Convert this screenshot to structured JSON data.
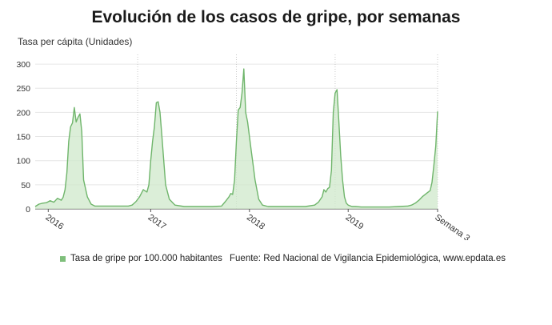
{
  "title": "Evolución de los casos de gripe, por semanas",
  "legend_label": "Tasa de gripe por 100.000 habitantes",
  "source": "Fuente: Red Nacional de Vigilancia Epidemiológica, www.epdata.es",
  "colors": {
    "line": "#6fb56b",
    "fill": "#cfe8cb",
    "grid": "#e6e6e6"
  },
  "chart_data": {
    "type": "area",
    "ylabel": "Tasa per cápita (Unidades)",
    "ylim": [
      0,
      320
    ],
    "yticks": [
      0,
      50,
      100,
      150,
      200,
      250,
      300
    ],
    "xlim": [
      0,
      216
    ],
    "x_tick_labels": [
      {
        "x": 7,
        "label": "2016"
      },
      {
        "x": 62,
        "label": "2017"
      },
      {
        "x": 115,
        "label": "2018"
      },
      {
        "x": 168,
        "label": "2019"
      },
      {
        "x": 216,
        "label": "Semana 3"
      }
    ],
    "vertical_grid_x": [
      55,
      108,
      161
    ],
    "grid": true,
    "series": [
      {
        "x": [
          0,
          2,
          4,
          6,
          8,
          10,
          12,
          14,
          15,
          16,
          17,
          18,
          19,
          20,
          21,
          22,
          23,
          24,
          25,
          26,
          28,
          30,
          32,
          36,
          40,
          45,
          50,
          52,
          54,
          56,
          58,
          60,
          61,
          62,
          63,
          64,
          65,
          66,
          67,
          68,
          70,
          72,
          75,
          80,
          85,
          90,
          95,
          100,
          102,
          104,
          105,
          106,
          107,
          108,
          109,
          110,
          111,
          112,
          113,
          114,
          115,
          116,
          117,
          118,
          120,
          122,
          125,
          130,
          135,
          140,
          145,
          150,
          152,
          154,
          155,
          156,
          157,
          158,
          159,
          160,
          161,
          162,
          163,
          164,
          165,
          166,
          167,
          168,
          170,
          172,
          175,
          180,
          185,
          190,
          195,
          200,
          202,
          204,
          206,
          208,
          210,
          212,
          213,
          214,
          215,
          216
        ],
        "y": [
          5,
          10,
          12,
          13,
          17,
          14,
          22,
          18,
          24,
          40,
          75,
          140,
          170,
          178,
          210,
          180,
          190,
          197,
          160,
          60,
          25,
          10,
          6,
          6,
          6,
          6,
          6,
          8,
          15,
          25,
          40,
          35,
          50,
          100,
          140,
          170,
          220,
          222,
          200,
          150,
          50,
          20,
          8,
          5,
          5,
          5,
          5,
          6,
          15,
          25,
          32,
          30,
          60,
          140,
          205,
          210,
          240,
          290,
          200,
          180,
          150,
          120,
          90,
          60,
          20,
          8,
          5,
          5,
          5,
          5,
          5,
          8,
          14,
          25,
          40,
          35,
          42,
          45,
          80,
          200,
          240,
          247,
          180,
          110,
          60,
          25,
          12,
          8,
          5,
          5,
          4,
          4,
          4,
          4,
          5,
          6,
          8,
          12,
          18,
          26,
          32,
          38,
          55,
          90,
          130,
          202
        ]
      }
    ]
  }
}
